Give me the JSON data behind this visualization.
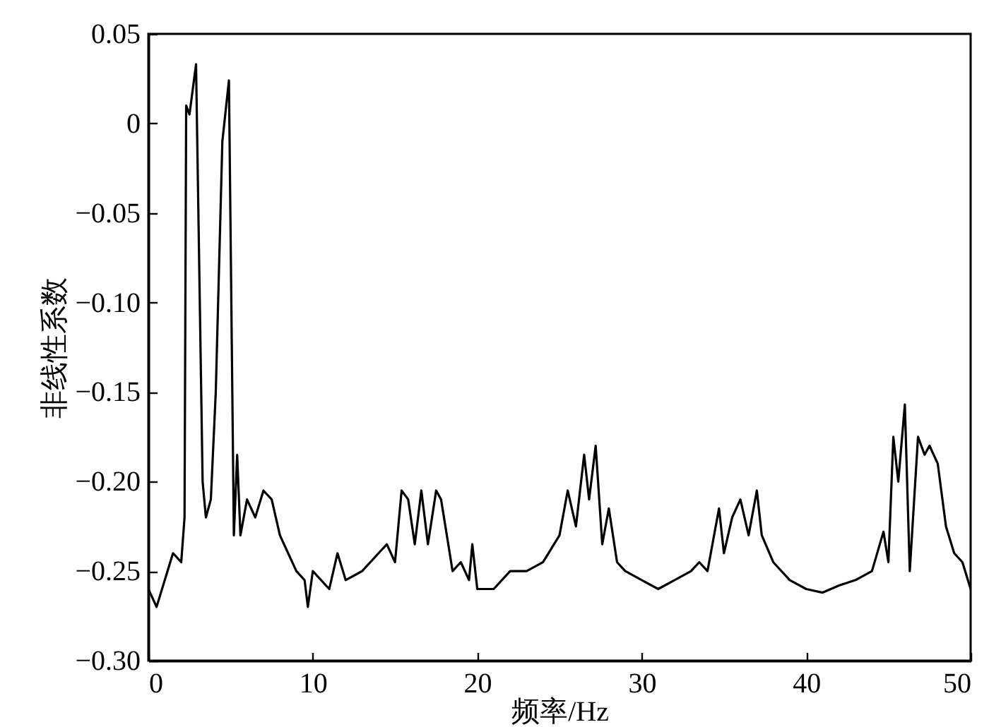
{
  "chart_data": {
    "type": "line",
    "xlabel": "频率/Hz",
    "ylabel": "非线性系数",
    "xlim": [
      0,
      50
    ],
    "xticks": [
      0,
      10,
      20,
      30,
      40,
      50
    ],
    "ylim": [
      -0.3,
      0.05
    ],
    "yticks": [
      {
        "value": -0.3,
        "label": "−0.30"
      },
      {
        "value": -0.25,
        "label": "−0.25"
      },
      {
        "value": -0.2,
        "label": "−0.20"
      },
      {
        "value": -0.15,
        "label": "−0.15"
      },
      {
        "value": -0.1,
        "label": "−0.10"
      },
      {
        "value": -0.05,
        "label": "−0.05"
      },
      {
        "value": 0,
        "label": "0"
      },
      {
        "value": 0.05,
        "label": "0.05"
      }
    ],
    "grid": false,
    "line_style": "solid",
    "series": [
      {
        "color": "#000000",
        "x": [
          0,
          0.5,
          1,
          1.5,
          2,
          2.2,
          2.3,
          2.5,
          2.9,
          3.3,
          3.5,
          3.8,
          4.1,
          4.5,
          4.9,
          5.2,
          5.4,
          5.6,
          6,
          6.5,
          7,
          7.5,
          8,
          8.5,
          9,
          9.5,
          9.7,
          10,
          11,
          11.5,
          12,
          13,
          14,
          14.5,
          15,
          15.4,
          15.8,
          16.2,
          16.6,
          17,
          17.5,
          17.8,
          18.5,
          19,
          19.5,
          19.7,
          20,
          21,
          22,
          23,
          24,
          25,
          25.5,
          26,
          26.5,
          26.8,
          27.2,
          27.6,
          28,
          28.5,
          29,
          30,
          31,
          32,
          33,
          33.5,
          34,
          34.7,
          35,
          35.5,
          36,
          36.5,
          37,
          37.3,
          38,
          39,
          40,
          41,
          42,
          43,
          44,
          44.7,
          45,
          45.3,
          45.6,
          46,
          46.3,
          46.8,
          47.2,
          47.5,
          48,
          48.5,
          49,
          49.5,
          50
        ],
        "values": [
          -0.26,
          -0.27,
          -0.255,
          -0.24,
          -0.245,
          -0.22,
          0.01,
          0.005,
          0.033,
          -0.2,
          -0.22,
          -0.21,
          -0.15,
          -0.01,
          0.024,
          -0.23,
          -0.185,
          -0.23,
          -0.21,
          -0.22,
          -0.205,
          -0.21,
          -0.23,
          -0.24,
          -0.25,
          -0.255,
          -0.27,
          -0.25,
          -0.26,
          -0.24,
          -0.255,
          -0.25,
          -0.24,
          -0.235,
          -0.245,
          -0.205,
          -0.21,
          -0.235,
          -0.205,
          -0.235,
          -0.205,
          -0.21,
          -0.25,
          -0.245,
          -0.255,
          -0.235,
          -0.26,
          -0.26,
          -0.25,
          -0.25,
          -0.245,
          -0.23,
          -0.205,
          -0.225,
          -0.185,
          -0.21,
          -0.18,
          -0.235,
          -0.215,
          -0.245,
          -0.25,
          -0.255,
          -0.26,
          -0.255,
          -0.25,
          -0.245,
          -0.25,
          -0.215,
          -0.24,
          -0.22,
          -0.21,
          -0.23,
          -0.205,
          -0.23,
          -0.245,
          -0.255,
          -0.26,
          -0.262,
          -0.258,
          -0.255,
          -0.25,
          -0.228,
          -0.245,
          -0.175,
          -0.2,
          -0.157,
          -0.25,
          -0.175,
          -0.185,
          -0.18,
          -0.19,
          -0.225,
          -0.24,
          -0.245,
          -0.26
        ]
      }
    ]
  }
}
